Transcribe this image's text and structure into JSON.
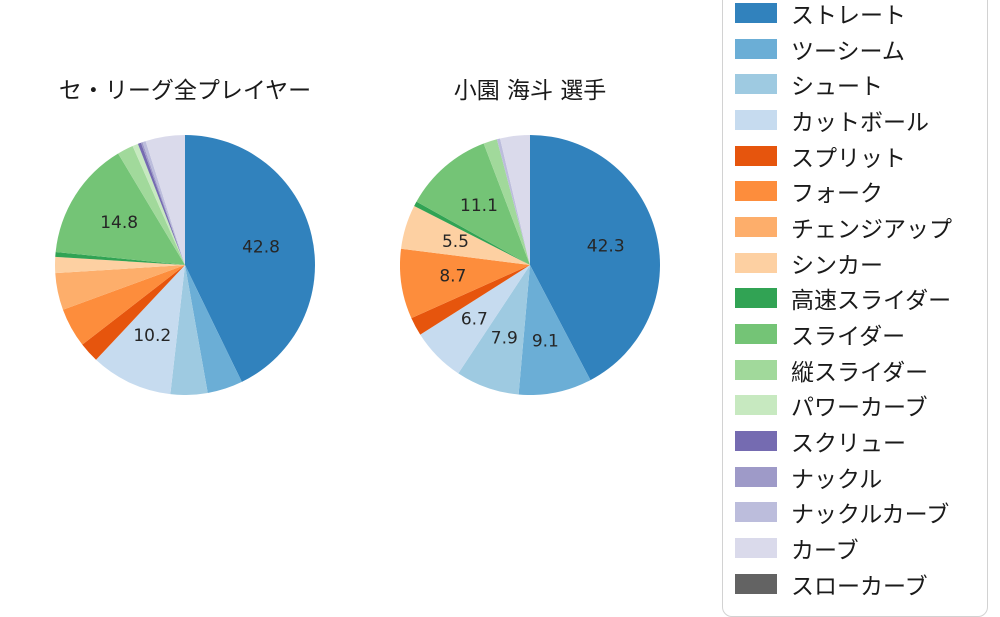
{
  "figure": {
    "background_color": "#ffffff",
    "text_color": "#1a1a1a",
    "slice_label_color": "#262626"
  },
  "legend": {
    "position": "right",
    "border_color": "#d2d2d2",
    "items": [
      {
        "label": "ストレート",
        "color": "#3182bd"
      },
      {
        "label": "ツーシーム",
        "color": "#6baed6"
      },
      {
        "label": "シュート",
        "color": "#9ecae1"
      },
      {
        "label": "カットボール",
        "color": "#c6dbef"
      },
      {
        "label": "スプリット",
        "color": "#e6550d"
      },
      {
        "label": "フォーク",
        "color": "#fd8d3c"
      },
      {
        "label": "チェンジアップ",
        "color": "#fdae6b"
      },
      {
        "label": "シンカー",
        "color": "#fdd0a2"
      },
      {
        "label": "高速スライダー",
        "color": "#31a354"
      },
      {
        "label": "スライダー",
        "color": "#74c476"
      },
      {
        "label": "縦スライダー",
        "color": "#a1d99b"
      },
      {
        "label": "パワーカーブ",
        "color": "#c7e9c0"
      },
      {
        "label": "スクリュー",
        "color": "#756bb1"
      },
      {
        "label": "ナックル",
        "color": "#9e9ac8"
      },
      {
        "label": "ナックルカーブ",
        "color": "#bcbddc"
      },
      {
        "label": "カーブ",
        "color": "#dadaeb"
      },
      {
        "label": "スローカーブ",
        "color": "#636363"
      }
    ]
  },
  "chart_data": [
    {
      "type": "pie",
      "title": "セ・リーグ全プレイヤー",
      "value_unit": "percent",
      "start_angle": "top",
      "direction": "clockwise",
      "pct_label_distance": 0.6,
      "unlabeled_values_estimated": true,
      "visible_slice_labels": [
        "42.8",
        "10.2",
        "14.8"
      ],
      "slices": [
        {
          "name": "ストレート",
          "value": 42.8,
          "label": "42.8"
        },
        {
          "name": "ツーシーム",
          "value": 4.4,
          "label": null
        },
        {
          "name": "シュート",
          "value": 4.6,
          "label": null
        },
        {
          "name": "カットボール",
          "value": 10.2,
          "label": "10.2"
        },
        {
          "name": "スプリット",
          "value": 2.5,
          "label": null
        },
        {
          "name": "フォーク",
          "value": 4.9,
          "label": null
        },
        {
          "name": "チェンジアップ",
          "value": 4.6,
          "label": null
        },
        {
          "name": "シンカー",
          "value": 2.0,
          "label": null
        },
        {
          "name": "高速スライダー",
          "value": 0.6,
          "label": null
        },
        {
          "name": "スライダー",
          "value": 14.8,
          "label": "14.8"
        },
        {
          "name": "縦スライダー",
          "value": 2.0,
          "label": null
        },
        {
          "name": "パワーカーブ",
          "value": 0.7,
          "label": null
        },
        {
          "name": "スクリュー",
          "value": 0.4,
          "label": null
        },
        {
          "name": "ナックル",
          "value": 0.2,
          "label": null
        },
        {
          "name": "ナックルカーブ",
          "value": 0.4,
          "label": null
        },
        {
          "name": "カーブ",
          "value": 4.9,
          "label": null
        }
      ]
    },
    {
      "type": "pie",
      "title": "小園 海斗 選手",
      "value_unit": "percent",
      "start_angle": "top",
      "direction": "clockwise",
      "pct_label_distance": 0.6,
      "unlabeled_values_estimated": true,
      "visible_slice_labels": [
        "42.3",
        "9.1",
        "7.9",
        "6.7",
        "8.7",
        "5.5",
        "11.1"
      ],
      "slices": [
        {
          "name": "ストレート",
          "value": 42.3,
          "label": "42.3"
        },
        {
          "name": "ツーシーム",
          "value": 9.1,
          "label": "9.1"
        },
        {
          "name": "シュート",
          "value": 7.9,
          "label": "7.9"
        },
        {
          "name": "カットボール",
          "value": 6.7,
          "label": "6.7"
        },
        {
          "name": "スプリット",
          "value": 2.3,
          "label": null
        },
        {
          "name": "フォーク",
          "value": 8.7,
          "label": "8.7"
        },
        {
          "name": "シンカー",
          "value": 5.5,
          "label": "5.5"
        },
        {
          "name": "高速スライダー",
          "value": 0.6,
          "label": null
        },
        {
          "name": "スライダー",
          "value": 11.1,
          "label": "11.1"
        },
        {
          "name": "縦スライダー",
          "value": 1.7,
          "label": null
        },
        {
          "name": "ナックルカーブ",
          "value": 0.4,
          "label": null
        },
        {
          "name": "カーブ",
          "value": 3.7,
          "label": null
        }
      ]
    }
  ]
}
